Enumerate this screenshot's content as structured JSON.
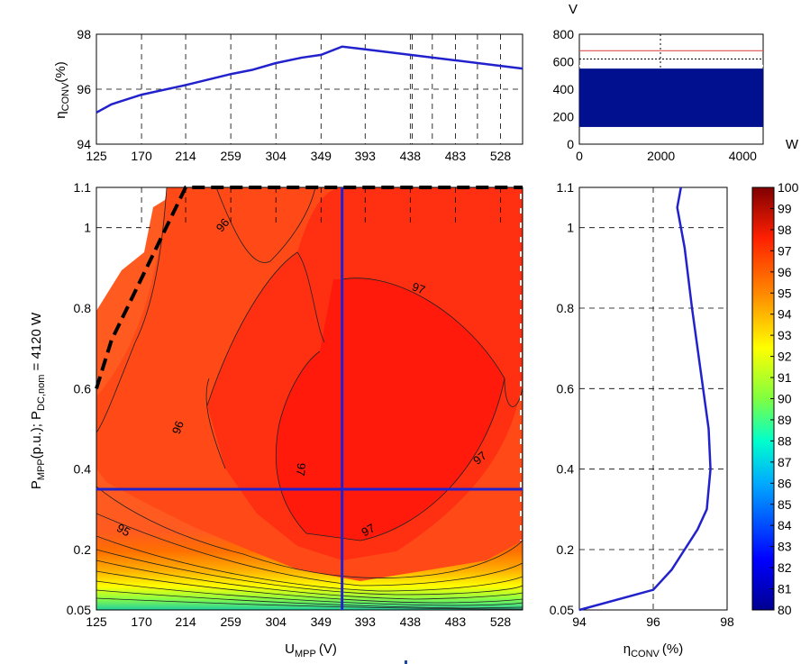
{
  "chart_data": [
    {
      "id": "top-efficiency",
      "type": "line",
      "ylabel": "ηCONV(%)",
      "ylabel_main": "η",
      "ylabel_sub": "CONV",
      "ylabel_unit": "(%)",
      "x_ticks": [
        "125",
        "170",
        "214",
        "259",
        "304",
        "349",
        "393",
        "438",
        "483",
        "528"
      ],
      "y_ticks": [
        "94",
        "96",
        "98"
      ],
      "xlim": [
        125,
        550
      ],
      "ylim": [
        94,
        98
      ],
      "grid": true,
      "series": [
        {
          "color": "#2222cc",
          "x": [
            125,
            140,
            170,
            214,
            259,
            280,
            304,
            330,
            349,
            370,
            393,
            438,
            483,
            528,
            550
          ],
          "y": [
            95.15,
            95.45,
            95.8,
            96.15,
            96.55,
            96.7,
            96.95,
            97.15,
            97.25,
            97.55,
            97.45,
            97.25,
            97.05,
            96.85,
            96.75
          ]
        }
      ]
    },
    {
      "id": "voltage-window",
      "type": "area",
      "y_unit": "V",
      "x_unit": "W",
      "x_ticks": [
        "0",
        "2000",
        "4000"
      ],
      "y_ticks": [
        "0",
        "200",
        "400",
        "600",
        "800"
      ],
      "xlim": [
        0,
        4500
      ],
      "ylim": [
        0,
        800
      ],
      "fill_range": [
        125,
        550
      ],
      "fill_color": "#00108f",
      "red_line": 680,
      "dotted_line": 620,
      "dashed_line": 800
    },
    {
      "id": "contour-map",
      "type": "heatmap",
      "xlabel": "UMPP (V)",
      "xlabel_main": "U",
      "xlabel_sub": "MPP",
      "xlabel_unit": "(V)",
      "ylabel": "PMPP(p.u.); PDC,nom = 4120 W",
      "ylabel_a": "P",
      "ylabel_a_sub": "MPP",
      "ylabel_b": "(p.u.); P",
      "ylabel_b_sub": "DC,nom",
      "ylabel_c": " = 4120 W",
      "x_ticks": [
        "125",
        "170",
        "214",
        "259",
        "304",
        "349",
        "393",
        "438",
        "483",
        "528"
      ],
      "y_ticks": [
        "0.05",
        "0.2",
        "0.4",
        "0.6",
        "0.8",
        "1",
        "1.1"
      ],
      "xlim": [
        125,
        550
      ],
      "ylim": [
        0.05,
        1.1
      ],
      "contour_labels": [
        {
          "text": "96",
          "x": 254,
          "y": 1.0,
          "rotate": -50
        },
        {
          "text": "97",
          "x": 445,
          "y": 0.84,
          "rotate": 20
        },
        {
          "text": "96",
          "x": 210,
          "y": 0.5,
          "rotate": -70
        },
        {
          "text": "97",
          "x": 325,
          "y": 0.4,
          "rotate": 95
        },
        {
          "text": "97",
          "x": 510,
          "y": 0.42,
          "rotate": -40
        },
        {
          "text": "95",
          "x": 150,
          "y": 0.24,
          "rotate": 30
        },
        {
          "text": "97",
          "x": 398,
          "y": 0.24,
          "rotate": -30
        }
      ],
      "crosshair": {
        "x": 370,
        "y": 0.35,
        "color": "#2222cc"
      },
      "boundary": {
        "x": [
          125,
          140,
          214,
          550
        ],
        "y": [
          0.6,
          0.72,
          1.1,
          1.1
        ]
      }
    },
    {
      "id": "right-efficiency",
      "type": "line",
      "xlabel": "ηCONV (%)",
      "xlabel_main": "η",
      "xlabel_sub": "CONV",
      "xlabel_unit": "(%)",
      "x_ticks": [
        "94",
        "96",
        "98"
      ],
      "y_ticks": [
        "0.05",
        "0.2",
        "0.4",
        "0.6",
        "0.8",
        "1",
        "1.1"
      ],
      "xlim": [
        94,
        98
      ],
      "ylim": [
        0.05,
        1.1
      ],
      "grid": true,
      "series": [
        {
          "color": "#2222cc",
          "x": [
            94.0,
            96.0,
            96.5,
            96.85,
            97.2,
            97.45,
            97.55,
            97.5,
            97.35,
            97.2,
            97.05,
            96.85,
            96.65,
            96.75
          ],
          "y": [
            0.05,
            0.1,
            0.15,
            0.2,
            0.25,
            0.3,
            0.4,
            0.5,
            0.6,
            0.7,
            0.8,
            0.95,
            1.05,
            1.1
          ]
        }
      ]
    },
    {
      "id": "colorbar",
      "type": "heatmap",
      "ticks": [
        "80",
        "81",
        "82",
        "83",
        "84",
        "85",
        "86",
        "87",
        "88",
        "89",
        "90",
        "91",
        "92",
        "93",
        "94",
        "95",
        "96",
        "97",
        "98",
        "99",
        "100"
      ],
      "range": [
        80,
        100
      ]
    }
  ]
}
